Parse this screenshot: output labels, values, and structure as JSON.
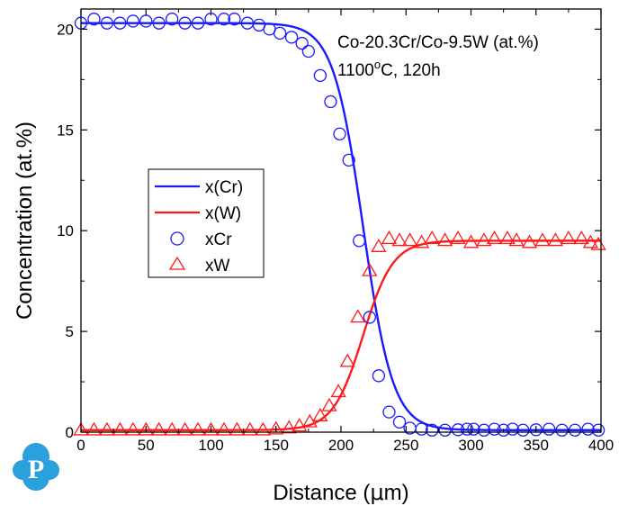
{
  "colors": {
    "cr": "#1a1aff",
    "w": "#ff1a1a",
    "logo": "#2aa0dc"
  },
  "logo": {
    "letter": "P"
  },
  "chart_data": {
    "type": "line",
    "xlabel_parts": [
      "Distance (",
      "μ",
      "m)"
    ],
    "ylabel": "Concentration (at.%)",
    "xlim": [
      0,
      400
    ],
    "ylim": [
      0,
      21
    ],
    "xticks": [
      "0",
      "50",
      "100",
      "150",
      "200",
      "250",
      "300",
      "350",
      "400"
    ],
    "yticks": [
      "0",
      "5",
      "10",
      "15",
      "20"
    ],
    "grid": false,
    "legend_placement": "middle-left",
    "annotations": {
      "line1": "Co-20.3Cr/Co-9.5W (at.%)",
      "line2_prefix": "1100",
      "line2_sup": "o",
      "line2_suffix": "C, 120h"
    },
    "curve_params": {
      "cr": {
        "left": 20.3,
        "right": 0.1,
        "center": 217,
        "width": 11.5
      },
      "w": {
        "left": 0.1,
        "right": 9.5,
        "center": 217,
        "width": 11.5
      }
    },
    "series": [
      {
        "name": "x(Cr)",
        "kind": "line",
        "color_key": "cr",
        "param_key": "cr"
      },
      {
        "name": "x(W)",
        "kind": "line",
        "color_key": "w",
        "param_key": "w"
      },
      {
        "name": "xCr",
        "kind": "scatter",
        "marker": "circle",
        "color_key": "cr",
        "points": [
          [
            0,
            20.3
          ],
          [
            10,
            20.5
          ],
          [
            20,
            20.3
          ],
          [
            30,
            20.3
          ],
          [
            40,
            20.4
          ],
          [
            50,
            20.4
          ],
          [
            60,
            20.3
          ],
          [
            70,
            20.5
          ],
          [
            80,
            20.3
          ],
          [
            90,
            20.3
          ],
          [
            100,
            20.5
          ],
          [
            110,
            20.5
          ],
          [
            118,
            20.5
          ],
          [
            128,
            20.3
          ],
          [
            137,
            20.2
          ],
          [
            145,
            20.0
          ],
          [
            153,
            19.8
          ],
          [
            162,
            19.6
          ],
          [
            170,
            19.3
          ],
          [
            175,
            18.9
          ],
          [
            184,
            17.7
          ],
          [
            192,
            16.4
          ],
          [
            199,
            14.8
          ],
          [
            206,
            13.5
          ],
          [
            214,
            9.5
          ],
          [
            222,
            5.7
          ],
          [
            229,
            2.8
          ],
          [
            237,
            1.0
          ],
          [
            245,
            0.5
          ],
          [
            253,
            0.2
          ],
          [
            262,
            0.15
          ],
          [
            270,
            0.1
          ],
          [
            280,
            0.1
          ],
          [
            290,
            0.12
          ],
          [
            297,
            0.15
          ],
          [
            302,
            0.15
          ],
          [
            310,
            0.1
          ],
          [
            318,
            0.15
          ],
          [
            325,
            0.1
          ],
          [
            332,
            0.15
          ],
          [
            340,
            0.1
          ],
          [
            350,
            0.12
          ],
          [
            360,
            0.15
          ],
          [
            370,
            0.1
          ],
          [
            380,
            0.1
          ],
          [
            390,
            0.15
          ],
          [
            398,
            0.1
          ]
        ]
      },
      {
        "name": "xW",
        "kind": "scatter",
        "marker": "triangle",
        "color_key": "w",
        "points": [
          [
            0,
            0.1
          ],
          [
            10,
            0.1
          ],
          [
            20,
            0.1
          ],
          [
            30,
            0.1
          ],
          [
            40,
            0.1
          ],
          [
            50,
            0.1
          ],
          [
            60,
            0.1
          ],
          [
            70,
            0.1
          ],
          [
            80,
            0.1
          ],
          [
            90,
            0.1
          ],
          [
            100,
            0.1
          ],
          [
            110,
            0.1
          ],
          [
            120,
            0.1
          ],
          [
            130,
            0.1
          ],
          [
            140,
            0.1
          ],
          [
            150,
            0.15
          ],
          [
            160,
            0.2
          ],
          [
            168,
            0.3
          ],
          [
            176,
            0.5
          ],
          [
            184,
            0.8
          ],
          [
            191,
            1.3
          ],
          [
            198,
            2.0
          ],
          [
            205,
            3.5
          ],
          [
            213,
            5.7
          ],
          [
            222,
            8.0
          ],
          [
            229,
            9.2
          ],
          [
            237,
            9.6
          ],
          [
            245,
            9.5
          ],
          [
            253,
            9.5
          ],
          [
            262,
            9.4
          ],
          [
            270,
            9.6
          ],
          [
            280,
            9.5
          ],
          [
            290,
            9.6
          ],
          [
            300,
            9.4
          ],
          [
            310,
            9.5
          ],
          [
            318,
            9.6
          ],
          [
            328,
            9.6
          ],
          [
            335,
            9.5
          ],
          [
            345,
            9.4
          ],
          [
            355,
            9.5
          ],
          [
            365,
            9.5
          ],
          [
            375,
            9.6
          ],
          [
            385,
            9.6
          ],
          [
            392,
            9.4
          ],
          [
            398,
            9.3
          ]
        ]
      }
    ]
  }
}
